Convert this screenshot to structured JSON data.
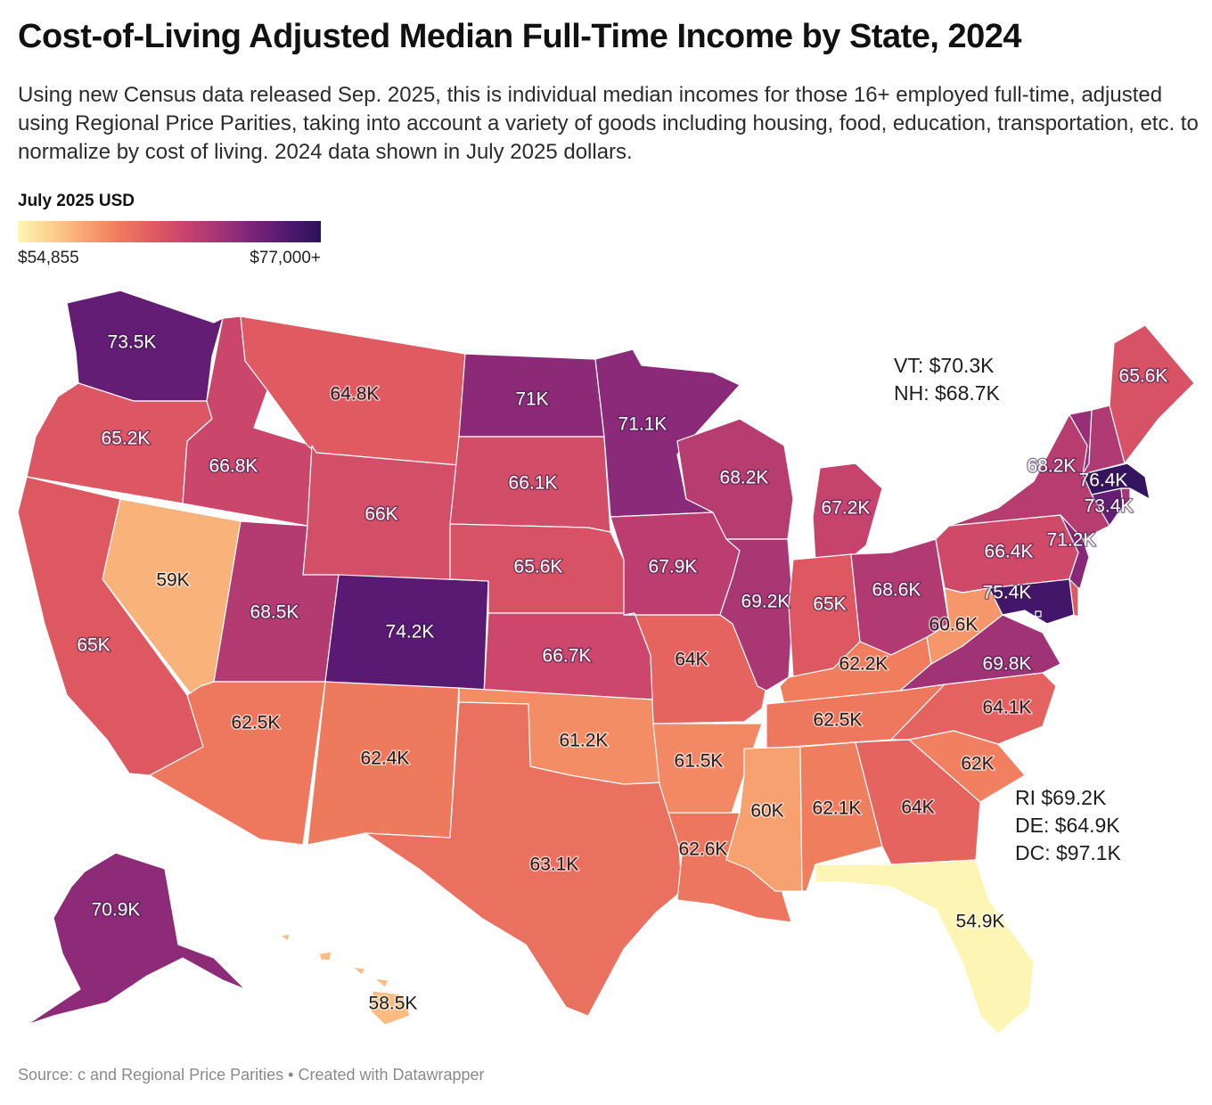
{
  "header": {
    "title": "Cost-of-Living Adjusted Median Full-Time Income by State, 2024",
    "subtitle": "Using new Census data released Sep. 2025, this is individual median incomes for those 16+ employed full-time, adjusted using Regional Price Parities, taking into account a variety of goods including housing, food, education, transportation, etc. to normalize by cost of living. 2024 data shown in July 2025 dollars."
  },
  "legend": {
    "title": "July 2025 USD",
    "min_label": "$54,855",
    "max_label": "$77,000+",
    "min_value": 54855,
    "max_value": 77000,
    "colors": [
      "#fdf6b5",
      "#fdd08f",
      "#f8a472",
      "#ef7c5e",
      "#e15b60",
      "#c7436d",
      "#a23476",
      "#7a2379",
      "#521871",
      "#2b1359"
    ]
  },
  "states": [
    {
      "id": "WA",
      "label": "73.5K",
      "value": 73.5
    },
    {
      "id": "OR",
      "label": "65.2K",
      "value": 65.2
    },
    {
      "id": "CA",
      "label": "65K",
      "value": 65.0
    },
    {
      "id": "NV",
      "label": "59K",
      "value": 59.0
    },
    {
      "id": "ID",
      "label": "66.8K",
      "value": 66.8
    },
    {
      "id": "MT",
      "label": "64.8K",
      "value": 64.8
    },
    {
      "id": "WY",
      "label": "66K",
      "value": 66.0
    },
    {
      "id": "UT",
      "label": "68.5K",
      "value": 68.5
    },
    {
      "id": "CO",
      "label": "74.2K",
      "value": 74.2
    },
    {
      "id": "AZ",
      "label": "62.5K",
      "value": 62.5
    },
    {
      "id": "NM",
      "label": "62.4K",
      "value": 62.4
    },
    {
      "id": "ND",
      "label": "71K",
      "value": 71.0
    },
    {
      "id": "SD",
      "label": "66.1K",
      "value": 66.1
    },
    {
      "id": "NE",
      "label": "65.6K",
      "value": 65.6
    },
    {
      "id": "KS",
      "label": "66.7K",
      "value": 66.7
    },
    {
      "id": "OK",
      "label": "61.2K",
      "value": 61.2
    },
    {
      "id": "TX",
      "label": "63.1K",
      "value": 63.1
    },
    {
      "id": "MN",
      "label": "71.1K",
      "value": 71.1
    },
    {
      "id": "IA",
      "label": "67.9K",
      "value": 67.9
    },
    {
      "id": "MO",
      "label": "64K",
      "value": 64.0
    },
    {
      "id": "AR",
      "label": "61.5K",
      "value": 61.5
    },
    {
      "id": "LA",
      "label": "62.6K",
      "value": 62.6
    },
    {
      "id": "WI",
      "label": "68.2K",
      "value": 68.2
    },
    {
      "id": "IL",
      "label": "69.2K",
      "value": 69.2
    },
    {
      "id": "MI",
      "label": "67.2K",
      "value": 67.2
    },
    {
      "id": "IN",
      "label": "65K",
      "value": 65.0
    },
    {
      "id": "OH",
      "label": "68.6K",
      "value": 68.6
    },
    {
      "id": "KY",
      "label": "62.2K",
      "value": 62.2
    },
    {
      "id": "TN",
      "label": "62.5K",
      "value": 62.5
    },
    {
      "id": "MS",
      "label": "60K",
      "value": 60.0
    },
    {
      "id": "AL",
      "label": "62.1K",
      "value": 62.1
    },
    {
      "id": "GA",
      "label": "64K",
      "value": 64.0
    },
    {
      "id": "FL",
      "label": "54.9K",
      "value": 54.9
    },
    {
      "id": "SC",
      "label": "62K",
      "value": 62.0
    },
    {
      "id": "NC",
      "label": "64.1K",
      "value": 64.1
    },
    {
      "id": "VA",
      "label": "69.8K",
      "value": 69.8
    },
    {
      "id": "WV",
      "label": "60.6K",
      "value": 60.6
    },
    {
      "id": "PA",
      "label": "66.4K",
      "value": 66.4
    },
    {
      "id": "NY",
      "label": "68.2K",
      "value": 68.2
    },
    {
      "id": "NJ",
      "label": "71.2K",
      "value": 71.2
    },
    {
      "id": "MD",
      "label": "75.4K",
      "value": 75.4
    },
    {
      "id": "DE",
      "label": "",
      "value": 64.9
    },
    {
      "id": "DC",
      "label": "",
      "value": 97.1
    },
    {
      "id": "CT",
      "label": "73.4K",
      "value": 73.4
    },
    {
      "id": "RI",
      "label": "",
      "value": 69.2
    },
    {
      "id": "MA",
      "label": "76.4K",
      "value": 76.4
    },
    {
      "id": "VT",
      "label": "",
      "value": 70.3
    },
    {
      "id": "NH",
      "label": "",
      "value": 68.7
    },
    {
      "id": "ME",
      "label": "65.6K",
      "value": 65.6
    },
    {
      "id": "AK",
      "label": "70.9K",
      "value": 70.9
    },
    {
      "id": "HI",
      "label": "58.5K",
      "value": 58.5
    }
  ],
  "annotations": {
    "vt": "VT: $70.3K",
    "nh": "NH: $68.7K",
    "ri": "RI $69.2K",
    "de": "DE: $64.9K",
    "dc": "DC: $97.1K"
  },
  "footer": {
    "source": "Source: c and Regional Price Parities • Created with Datawrapper"
  }
}
